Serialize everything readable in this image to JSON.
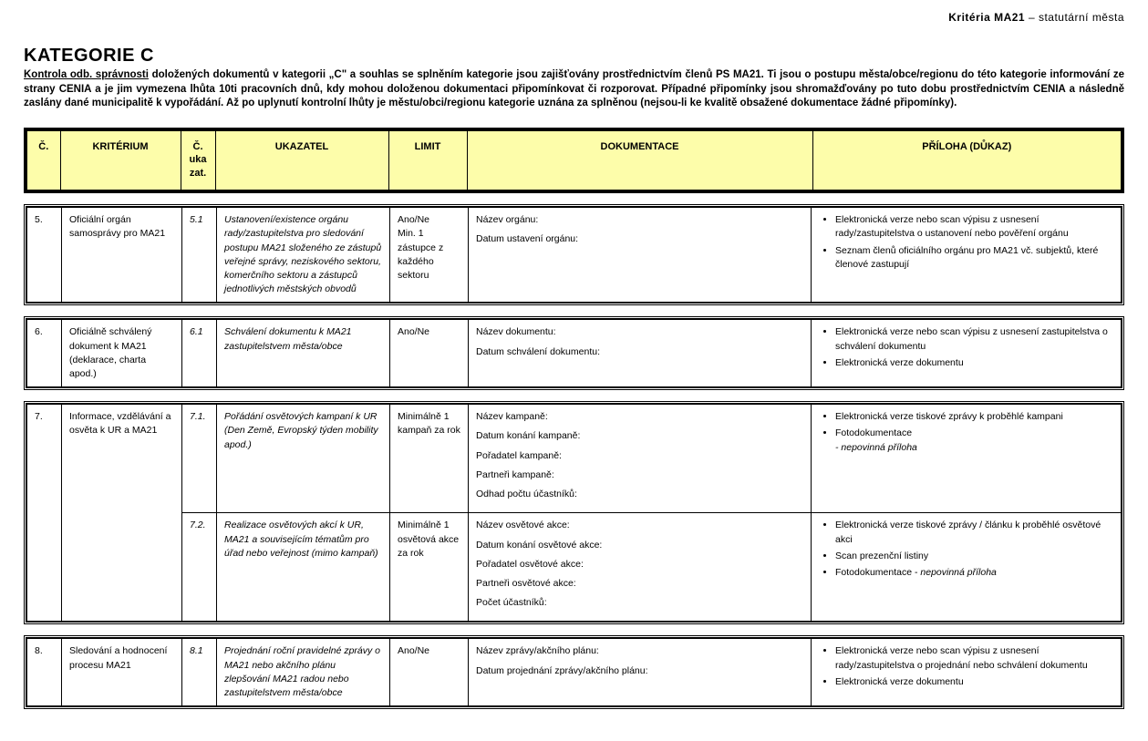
{
  "header": {
    "bold": "Kritéria MA21",
    "rest": " – statutární města"
  },
  "title": "KATEGORIE C",
  "intro": {
    "underline": "Kontrola odb. správnosti",
    "text": " doložených dokumentů v kategorii „C\" a souhlas se splněním kategorie jsou zajišťovány prostřednictvím členů PS MA21. Ti jsou o postupu města/obce/regionu do této kategorie informování ze strany CENIA a je jim vymezena lhůta 10ti pracovních dnů, kdy mohou doloženou dokumentaci připomínkovat či rozporovat. Případné připomínky jsou shromažďovány po tuto dobu prostřednictvím CENIA a následně zaslány dané municipalitě k vypořádání. Až po uplynutí kontrolní lhůty je městu/obci/regionu kategorie uznána za splněnou (nejsou-li ke kvalitě obsažené dokumentace žádné připomínky)."
  },
  "columns": {
    "num": "Č.",
    "kriterium": "KRITÉRIUM",
    "ukazat_num": "Č. uka zat.",
    "ukazatel": "UKAZATEL",
    "limit": "LIMIT",
    "dokumentace": "DOKUMENTACE",
    "priloha": "PŘÍLOHA (DŮKAZ)"
  },
  "groups": [
    {
      "rows": [
        {
          "num": "5.",
          "kriterium": "Oficiální orgán samosprávy pro MA21",
          "ukazat_num": "5.1",
          "ukazatel": "Ustanovení/existence orgánu rady/zastupitelstva pro sledování postupu MA21 složeného ze zástupů veřejné správy, neziskového sektoru, komerčního sektoru a zástupců jednotlivých městských obvodů",
          "limit": "Ano/Ne\nMin. 1 zástupce z každého sektoru",
          "dokumentace": [
            "Název orgánu:",
            "Datum ustavení orgánu:"
          ],
          "priloha": [
            "Elektronická verze nebo scan výpisu z usnesení rady/zastupitelstva o ustanovení nebo pověření orgánu",
            "Seznam členů oficiálního orgánu pro MA21 vč. subjektů, které členové zastupují"
          ]
        }
      ]
    },
    {
      "rows": [
        {
          "num": "6.",
          "kriterium": "Oficiálně schválený dokument k MA21 (deklarace, charta apod.)",
          "ukazat_num": "6.1",
          "ukazatel": "Schválení dokumentu k MA21 zastupitelstvem města/obce",
          "limit": "Ano/Ne",
          "dokumentace": [
            "Název dokumentu:",
            "Datum schválení dokumentu:"
          ],
          "priloha": [
            "Elektronická verze nebo scan výpisu z usnesení zastupitelstva o schválení dokumentu",
            "Elektronická verze dokumentu"
          ]
        }
      ]
    },
    {
      "rows": [
        {
          "num": "7.",
          "kriterium": "Informace, vzdělávání a osvěta k UR a MA21",
          "ukazat_num": "7.1.",
          "ukazatel": "Pořádání osvětových kampaní k UR (Den Země, Evropský týden mobility apod.)",
          "limit": "Minimálně 1 kampaň za rok",
          "dokumentace": [
            "Název kampaně:",
            "Datum konání kampaně:",
            "Pořadatel kampaně:",
            "Partneři kampaně:",
            "Odhad počtu účastníků:"
          ],
          "priloha": [
            "Elektronická verze tiskové zprávy k proběhlé kampani",
            "Fotodokumentace\n- nepovinná příloha"
          ],
          "krit_rowspan": 2
        },
        {
          "ukazat_num": "7.2.",
          "ukazatel": "Realizace osvětových akcí k UR, MA21 a souvisejícím tématům pro úřad nebo veřejnost (mimo kampaň)",
          "limit": "Minimálně 1 osvětová akce za rok",
          "dokumentace": [
            "Název osvětové akce:",
            "Datum konání osvětové akce:",
            "Pořadatel osvětové akce:",
            "Partneři osvětové akce:",
            "Počet účastníků:"
          ],
          "priloha": [
            "Elektronická verze tiskové zprávy / článku k proběhlé osvětové akci",
            "Scan prezenční listiny",
            "Fotodokumentace - nepovinná příloha"
          ]
        }
      ]
    },
    {
      "rows": [
        {
          "num": "8.",
          "kriterium": "Sledování a hodnocení procesu MA21",
          "ukazat_num": "8.1",
          "ukazatel": "Projednání roční  pravidelné zprávy o MA21 nebo akčního plánu zlepšování MA21 radou nebo zastupitelstvem města/obce",
          "limit": "Ano/Ne",
          "dokumentace": [
            "Název zprávy/akčního plánu:",
            "Datum projednání zprávy/akčního plánu:"
          ],
          "priloha": [
            "Elektronická verze nebo scan výpisu z usnesení rady/zastupitelstva o projednání nebo schválení dokumentu",
            "Elektronická verze dokumentu"
          ]
        }
      ]
    }
  ],
  "style": {
    "header_bg": "#fdfdaa",
    "border_color": "#000000",
    "body_bg": "#ffffff"
  }
}
